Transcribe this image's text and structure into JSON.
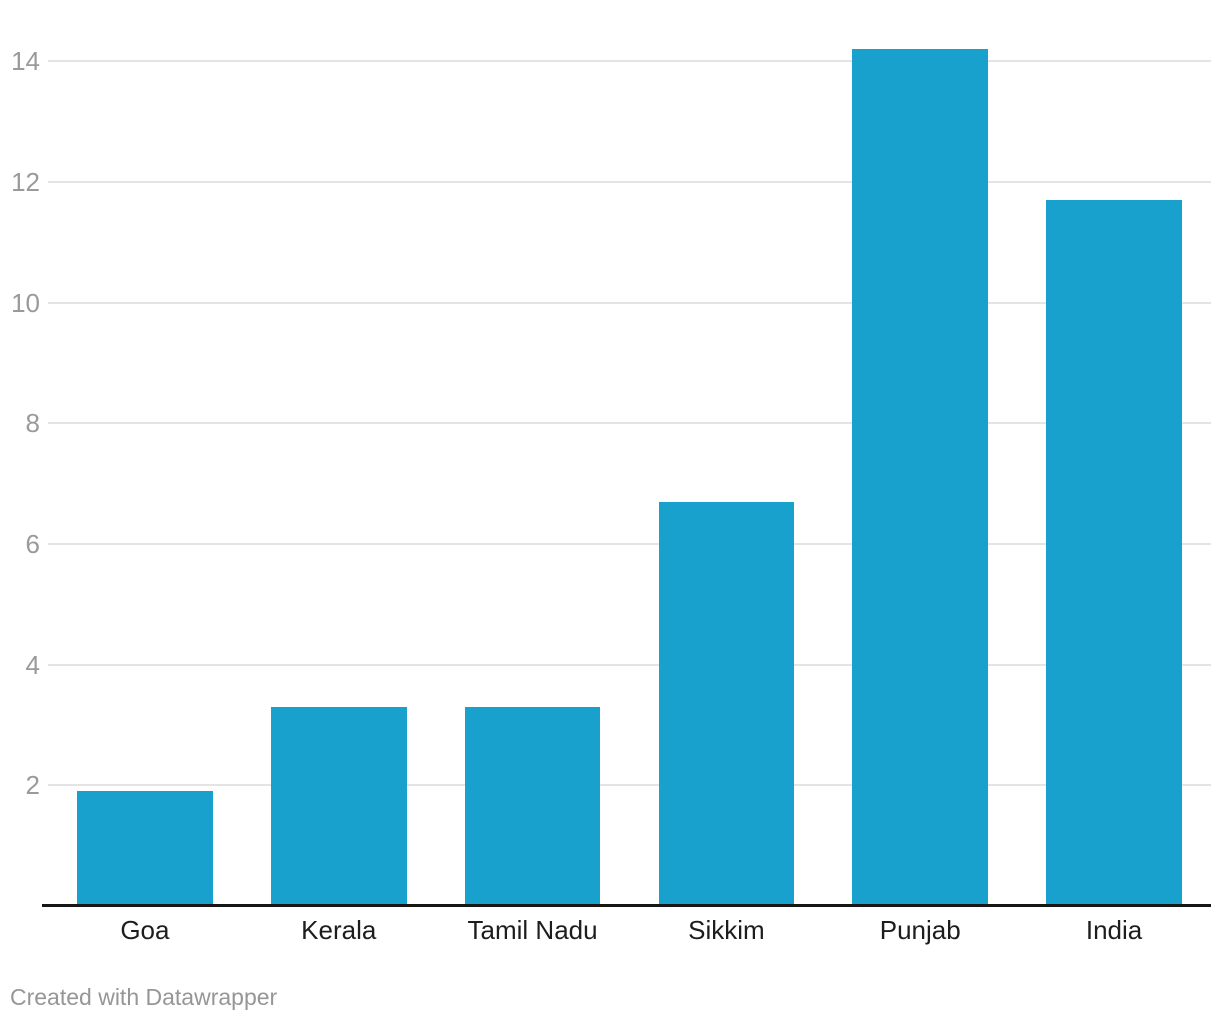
{
  "chart_data": {
    "type": "bar",
    "categories": [
      "Goa",
      "Kerala",
      "Tamil Nadu",
      "Sikkim",
      "Punjab",
      "India"
    ],
    "values": [
      1.9,
      3.3,
      3.3,
      6.7,
      14.2,
      11.7
    ],
    "title": "",
    "xlabel": "",
    "ylabel": "",
    "ylim": [
      0,
      15
    ],
    "yticks": [
      2,
      4,
      6,
      8,
      10,
      12,
      14
    ],
    "grid": true,
    "legend": false
  },
  "footer": {
    "attribution": "Created with Datawrapper"
  },
  "colors": {
    "bar": "#18a1cd",
    "gridline": "#e4e4e4",
    "axis_line": "#161616",
    "y_tick_label": "#9a9a9a",
    "category_label": "#1d1d1d",
    "attribution": "#969696"
  }
}
